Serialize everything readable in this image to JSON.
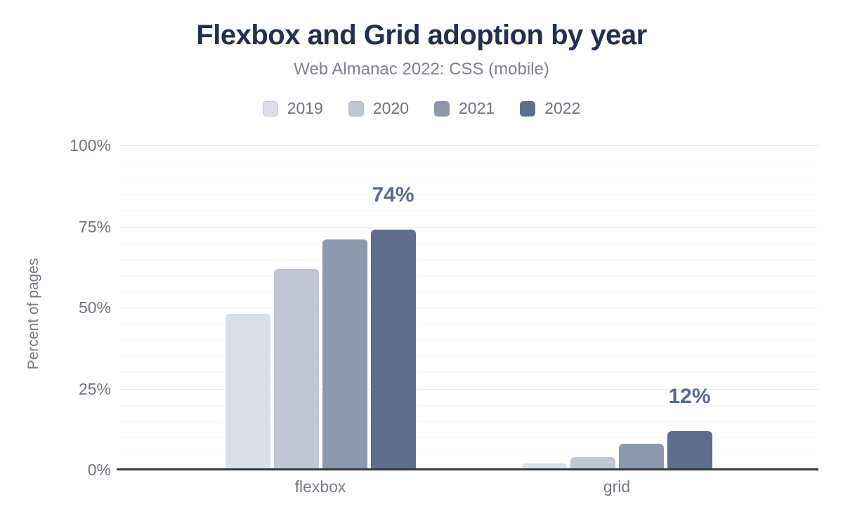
{
  "colors": {
    "title": "#22304e",
    "subtitle": "#7d828d",
    "legend_text": "#6e747f",
    "axis_text": "#71757e",
    "annotation": "#5a6b8e",
    "axis_line": "#36393e",
    "major_grid": "#e9eaee",
    "minor_grid": "#f5f6f8",
    "category_text": "#757a85",
    "background": "#ffffff"
  },
  "chart_data": {
    "type": "bar",
    "title": "Flexbox and Grid adoption by year",
    "subtitle": "Web Almanac 2022: CSS (mobile)",
    "xlabel": "",
    "ylabel": "Percent of pages",
    "categories": [
      "flexbox",
      "grid"
    ],
    "series": [
      {
        "name": "2019",
        "color": "#d9dee9",
        "values": [
          48,
          2
        ]
      },
      {
        "name": "2020",
        "color": "#bfc6d3",
        "values": [
          62,
          4
        ]
      },
      {
        "name": "2021",
        "color": "#8c98ae",
        "values": [
          71,
          8
        ]
      },
      {
        "name": "2022",
        "color": "#5e6d8c",
        "values": [
          74,
          12
        ]
      }
    ],
    "annotations": [
      {
        "category": "flexbox",
        "series": "2022",
        "text": "74%"
      },
      {
        "category": "grid",
        "series": "2022",
        "text": "12%"
      }
    ],
    "ylim": [
      0,
      100
    ],
    "yticks": [
      {
        "value": 0,
        "label": "0%"
      },
      {
        "value": 25,
        "label": "25%"
      },
      {
        "value": 50,
        "label": "50%"
      },
      {
        "value": 75,
        "label": "75%"
      },
      {
        "value": 100,
        "label": "100%"
      }
    ],
    "minor_grid_step": 5,
    "grid": true,
    "legend_position": "top"
  }
}
